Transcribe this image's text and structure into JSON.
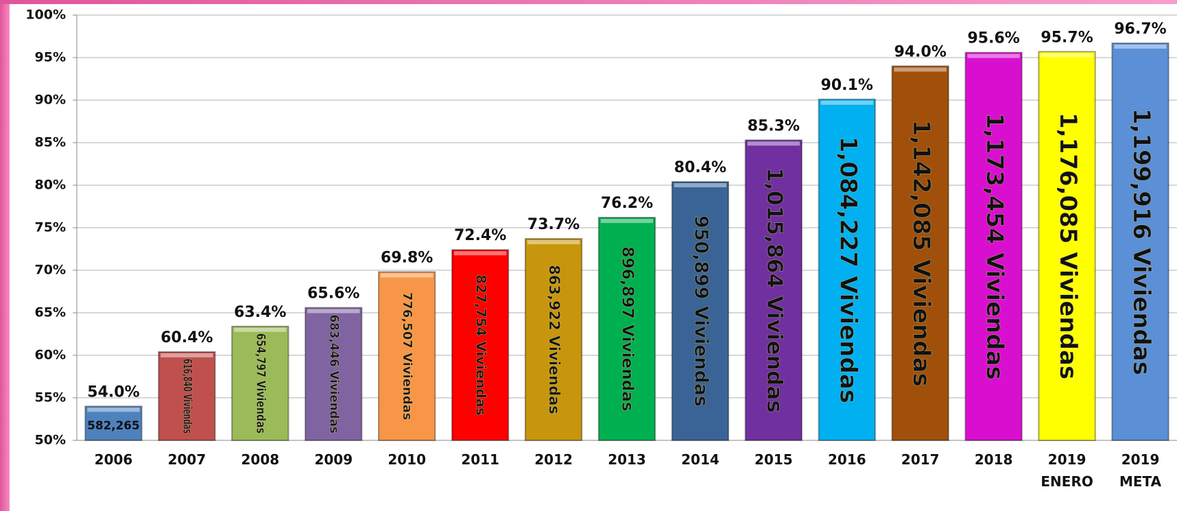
{
  "chart_data": {
    "type": "bar",
    "categories": [
      "2006",
      "2007",
      "2008",
      "2009",
      "2010",
      "2011",
      "2012",
      "2013",
      "2014",
      "2015",
      "2016",
      "2017",
      "2018",
      "2019\nENERO",
      "2019\nMETA"
    ],
    "values": [
      54.0,
      60.4,
      63.4,
      65.6,
      69.8,
      72.4,
      73.7,
      76.2,
      80.4,
      85.3,
      90.1,
      94.0,
      95.6,
      95.7,
      96.7
    ],
    "value_labels": [
      "54.0%",
      "60.4%",
      "63.4%",
      "65.6%",
      "69.8%",
      "72.4%",
      "73.7%",
      "76.2%",
      "80.4%",
      "85.3%",
      "90.1%",
      "94.0%",
      "95.6%",
      "95.7%",
      "96.7%"
    ],
    "inner_labels": [
      "582,265",
      "616,840 Viviendas",
      "654,797 Viviendas",
      "683,446 Viviendas",
      "776,507 Viviendas",
      "827,754 Viviendas",
      "863,922 Viviendas",
      "896,897 Viviendas",
      "950,899 Viviendas",
      "1,015,864 Viviendas",
      "1,084,227 Viviendas",
      "1,142,085 Viviendas",
      "1,173,454 Viviendas",
      "1,176,085 Viviendas",
      "1,199,916 Viviendas"
    ],
    "colors": [
      "#4f81bd",
      "#c0504d",
      "#9bbb59",
      "#8064a2",
      "#f79646",
      "#ff0000",
      "#c8960c",
      "#00b050",
      "#3a6496",
      "#7030a0",
      "#00b0f0",
      "#a0500a",
      "#d90fd0",
      "#ffff00",
      "#5b8fd6"
    ],
    "ylim": [
      50,
      100
    ],
    "yticks": [
      {
        "value": 50,
        "label": "50%"
      },
      {
        "value": 55,
        "label": "55%"
      },
      {
        "value": 60,
        "label": "60%"
      },
      {
        "value": 65,
        "label": "65%"
      },
      {
        "value": 70,
        "label": "70%"
      },
      {
        "value": 75,
        "label": "75%"
      },
      {
        "value": 80,
        "label": "80%"
      },
      {
        "value": 85,
        "label": "85%"
      },
      {
        "value": 90,
        "label": "90%"
      },
      {
        "value": 95,
        "label": "95%"
      },
      {
        "value": 100,
        "label": "100%"
      }
    ],
    "grid": true
  }
}
